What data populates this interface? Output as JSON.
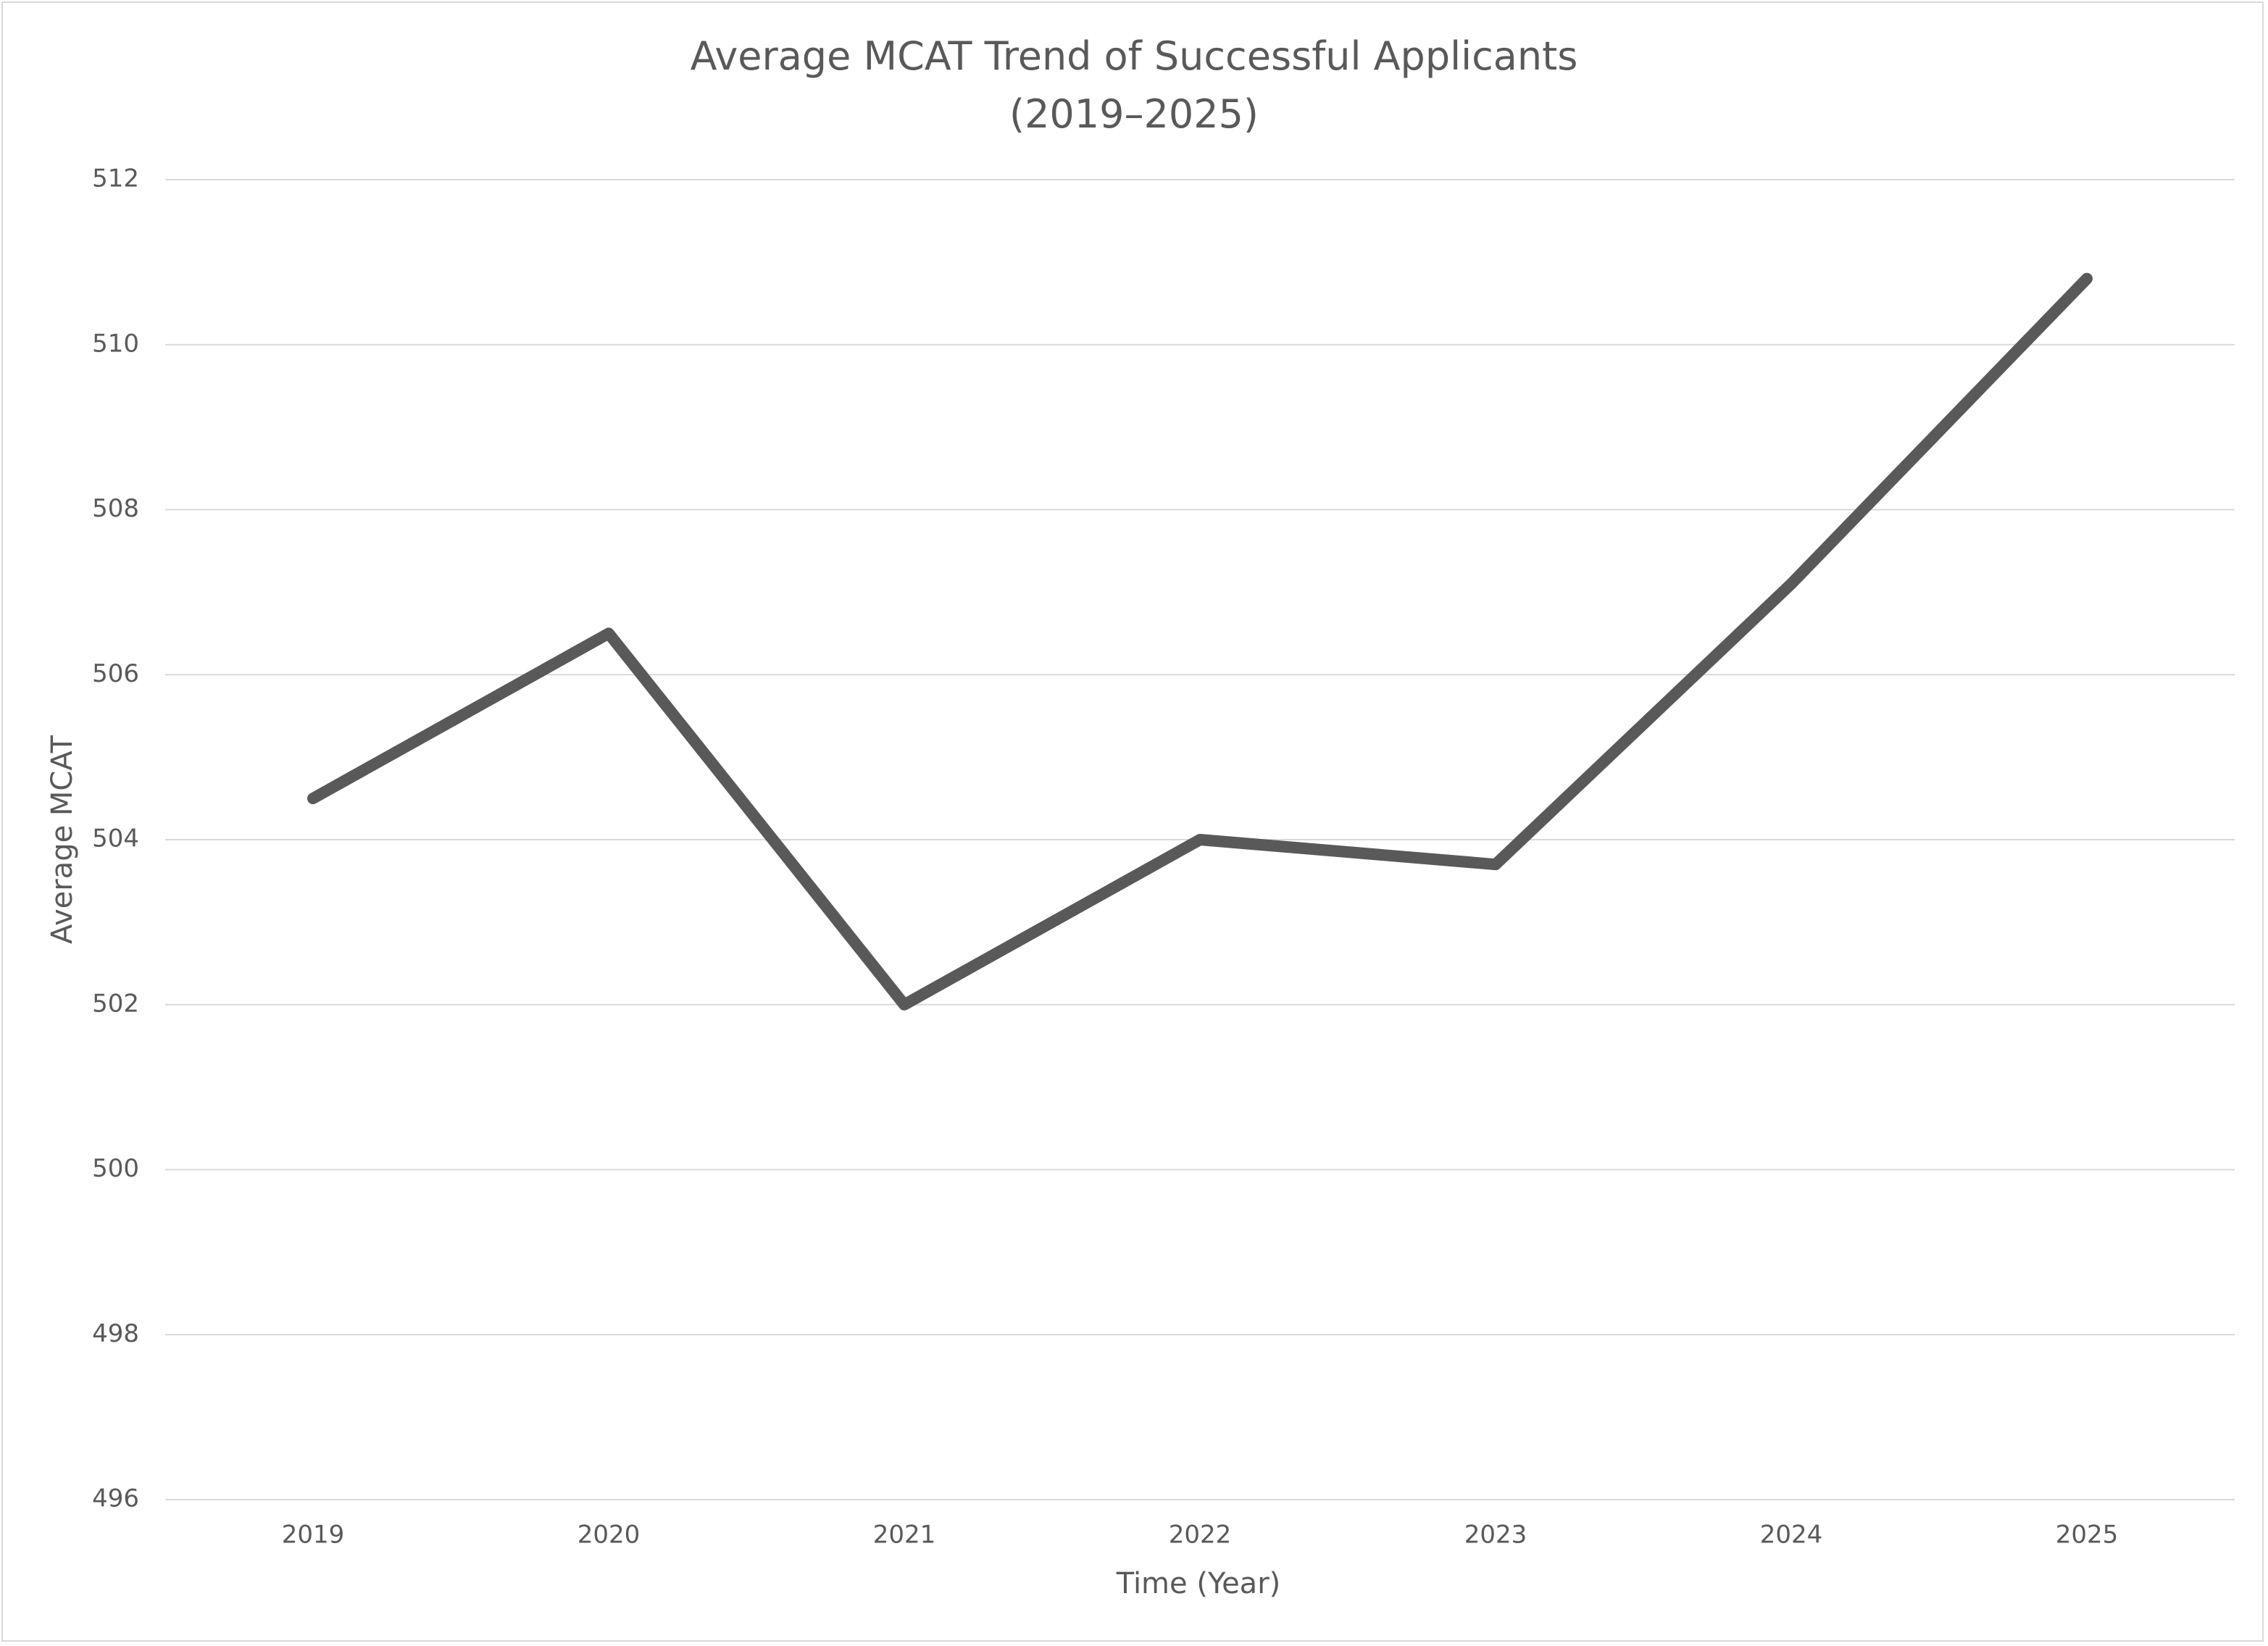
{
  "chart_data": {
    "type": "line",
    "title": "Average MCAT Trend of Successful Applicants\n(2019–2025)",
    "x_label": "Time (Year)",
    "y_label": "Average MCAT",
    "categories": [
      "2019",
      "2020",
      "2021",
      "2022",
      "2023",
      "2024",
      "2025"
    ],
    "series": [
      {
        "name": "Average MCAT",
        "color": "#595959",
        "values": [
          504.5,
          506.5,
          502,
          504,
          503.7,
          507.1,
          510.8
        ]
      }
    ],
    "ylim": [
      496,
      512
    ],
    "yticks": [
      496,
      498,
      500,
      502,
      504,
      506,
      508,
      510,
      512
    ],
    "grid": true,
    "legend": false
  }
}
